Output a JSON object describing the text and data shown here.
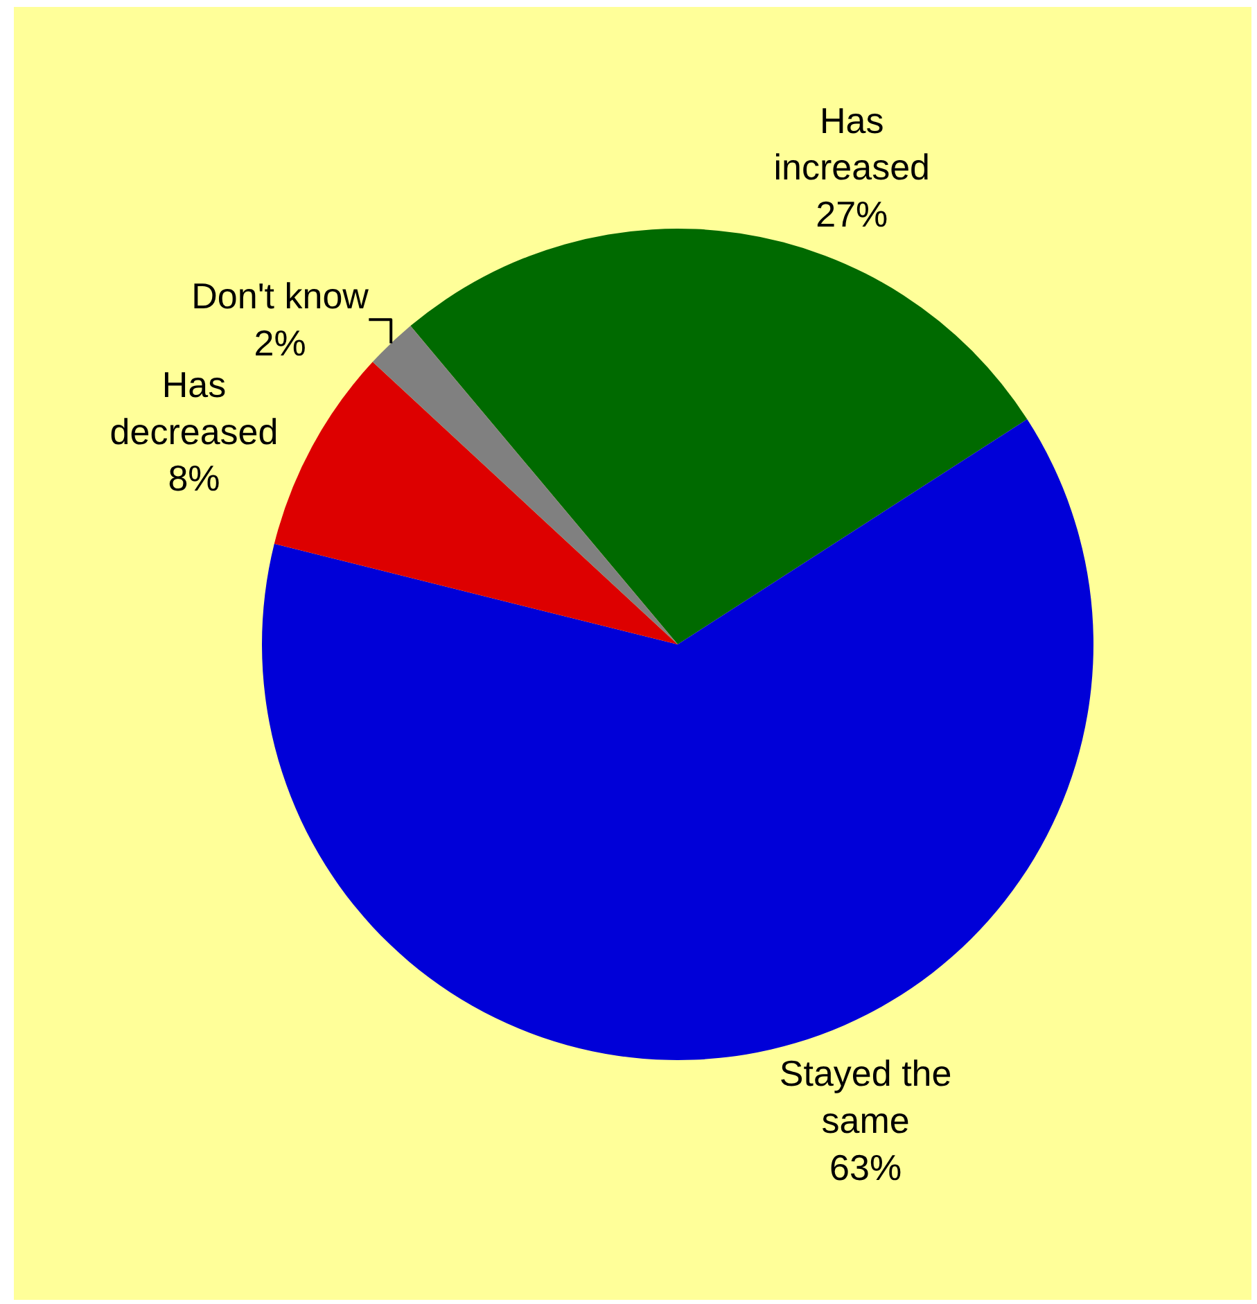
{
  "chart_data": {
    "type": "pie",
    "categories": [
      "Has increased",
      "Stayed the same",
      "Has decreased",
      "Don't know"
    ],
    "values": [
      27,
      63,
      8,
      2
    ],
    "value_labels": [
      "27%",
      "63%",
      "8%",
      "2%"
    ],
    "colors": [
      "#006a00",
      "#0000d8",
      "#dd0000",
      "#808080"
    ],
    "legend": false
  }
}
